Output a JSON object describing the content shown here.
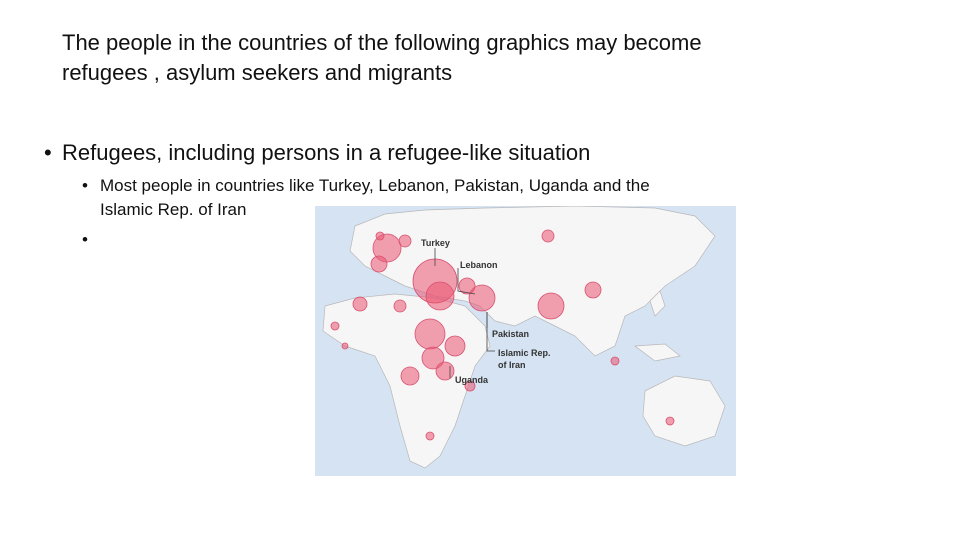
{
  "slide": {
    "title": {
      "lines": [
        "The people in the countries of the following graphics may become",
        "refugees , asylum seekers and migrants"
      ]
    },
    "bullets": [
      {
        "text": "Refugees, including persons in a refugee-like situation",
        "sub_bullets": [
          {
            "lines": [
              "Most people in countries like Turkey, Lebanon, Pakistan, Uganda and the",
              "Islamic Rep. of Iran"
            ]
          }
        ]
      }
    ],
    "map": {
      "labels": [
        "Turkey",
        "Lebanon",
        "Pakistan",
        "Islamic Rep.",
        "of Iran",
        "Uganda"
      ]
    }
  }
}
